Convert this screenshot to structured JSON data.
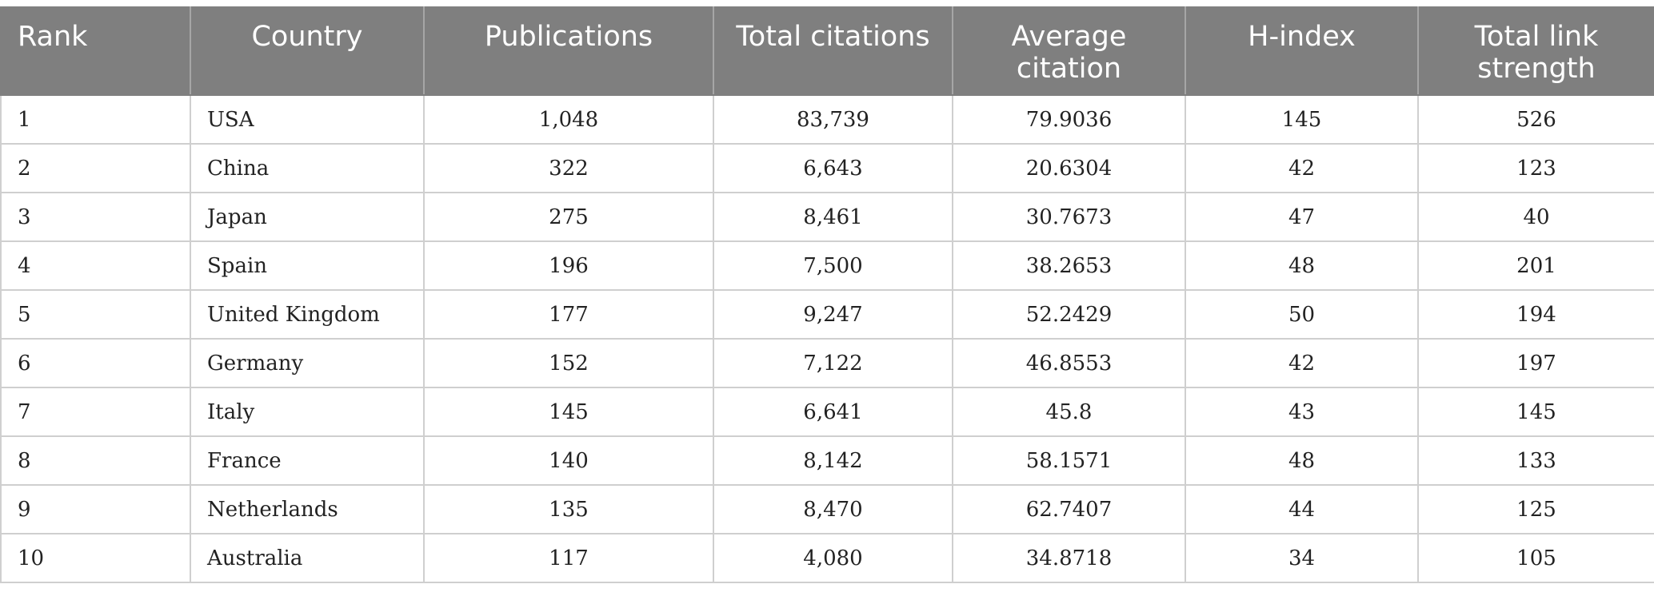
{
  "table": {
    "headers": {
      "rank": "Rank",
      "country": "Country",
      "publications": "Publications",
      "total_citations": "Total citations",
      "average_citation_line1": "Average",
      "average_citation_line2": "citation",
      "h_index": "H-index",
      "total_link_strength_line1": "Total link",
      "total_link_strength_line2": "strength"
    },
    "rows": [
      {
        "rank": "1",
        "country": "USA",
        "publications": "1,048",
        "total_citations": "83,739",
        "average_citation": "79.9036",
        "h_index": "145",
        "total_link_strength": "526"
      },
      {
        "rank": "2",
        "country": "China",
        "publications": "322",
        "total_citations": "6,643",
        "average_citation": "20.6304",
        "h_index": "42",
        "total_link_strength": "123"
      },
      {
        "rank": "3",
        "country": "Japan",
        "publications": "275",
        "total_citations": "8,461",
        "average_citation": "30.7673",
        "h_index": "47",
        "total_link_strength": "40"
      },
      {
        "rank": "4",
        "country": "Spain",
        "publications": "196",
        "total_citations": "7,500",
        "average_citation": "38.2653",
        "h_index": "48",
        "total_link_strength": "201"
      },
      {
        "rank": "5",
        "country": "United Kingdom",
        "publications": "177",
        "total_citations": "9,247",
        "average_citation": "52.2429",
        "h_index": "50",
        "total_link_strength": "194"
      },
      {
        "rank": "6",
        "country": "Germany",
        "publications": "152",
        "total_citations": "7,122",
        "average_citation": "46.8553",
        "h_index": "42",
        "total_link_strength": "197"
      },
      {
        "rank": "7",
        "country": "Italy",
        "publications": "145",
        "total_citations": "6,641",
        "average_citation": "45.8",
        "h_index": "43",
        "total_link_strength": "145"
      },
      {
        "rank": "8",
        "country": "France",
        "publications": "140",
        "total_citations": "8,142",
        "average_citation": "58.1571",
        "h_index": "48",
        "total_link_strength": "133"
      },
      {
        "rank": "9",
        "country": "Netherlands",
        "publications": "135",
        "total_citations": "8,470",
        "average_citation": "62.7407",
        "h_index": "44",
        "total_link_strength": "125"
      },
      {
        "rank": "10",
        "country": "Australia",
        "publications": "117",
        "total_citations": "4,080",
        "average_citation": "34.8718",
        "h_index": "34",
        "total_link_strength": "105"
      }
    ]
  }
}
